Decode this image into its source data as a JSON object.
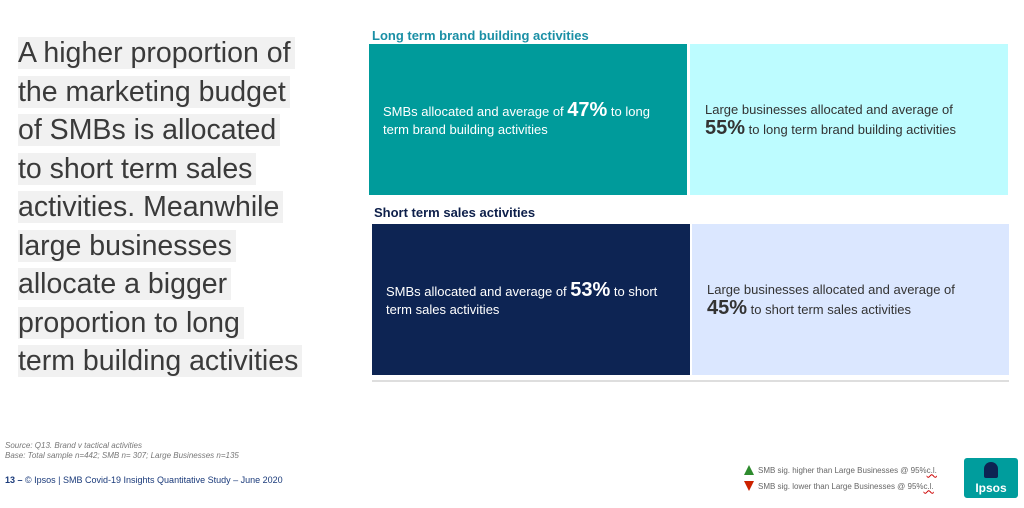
{
  "headline": {
    "lines": [
      "A higher proportion of",
      "the marketing budget",
      "of SMBs is allocated",
      "to short term sales",
      "activities. Meanwhile",
      "large businesses",
      "allocate a bigger",
      "proportion to long",
      "term building activities"
    ]
  },
  "sections": {
    "long_term": {
      "title": "Long term brand building activities",
      "smb": {
        "prefix": "SMBs allocated and average of ",
        "value": "47%",
        "suffix": " to long term brand building activities"
      },
      "large": {
        "prefix": "Large businesses allocated and average of ",
        "value": "55%",
        "suffix": " to long term brand building activities"
      }
    },
    "short_term": {
      "title": "Short term sales activities",
      "smb": {
        "prefix": "SMBs allocated and average of ",
        "value": "53%",
        "suffix": " to short term sales activities"
      },
      "large": {
        "prefix": "Large businesses allocated and average of ",
        "value": "45%",
        "suffix": " to short term sales activities"
      }
    }
  },
  "source": {
    "line1": "Source: Q13. Brand v tactical activities",
    "line2": "Base: Total sample n=442; SMB n= 307; Large Businesses n=135"
  },
  "footer": {
    "page": "13 –",
    "text": " © Ipsos | SMB Covid-19 Insights Quantitative Study – June 2020"
  },
  "legend": {
    "higher": {
      "text": "SMB sig. higher than Large Businesses @ 95% ",
      "ci": "c.l.",
      "color": "#2e8b2e"
    },
    "lower": {
      "text": "SMB sig. lower than Large Businesses @ 95% ",
      "ci": "c.l.",
      "color": "#cc2200"
    }
  },
  "logo": {
    "text": "Ipsos"
  },
  "colors": {
    "smb_long": "#009b9b",
    "large_long": "#bdfcff",
    "smb_short": "#0d2453",
    "large_short": "#dbe7ff"
  }
}
